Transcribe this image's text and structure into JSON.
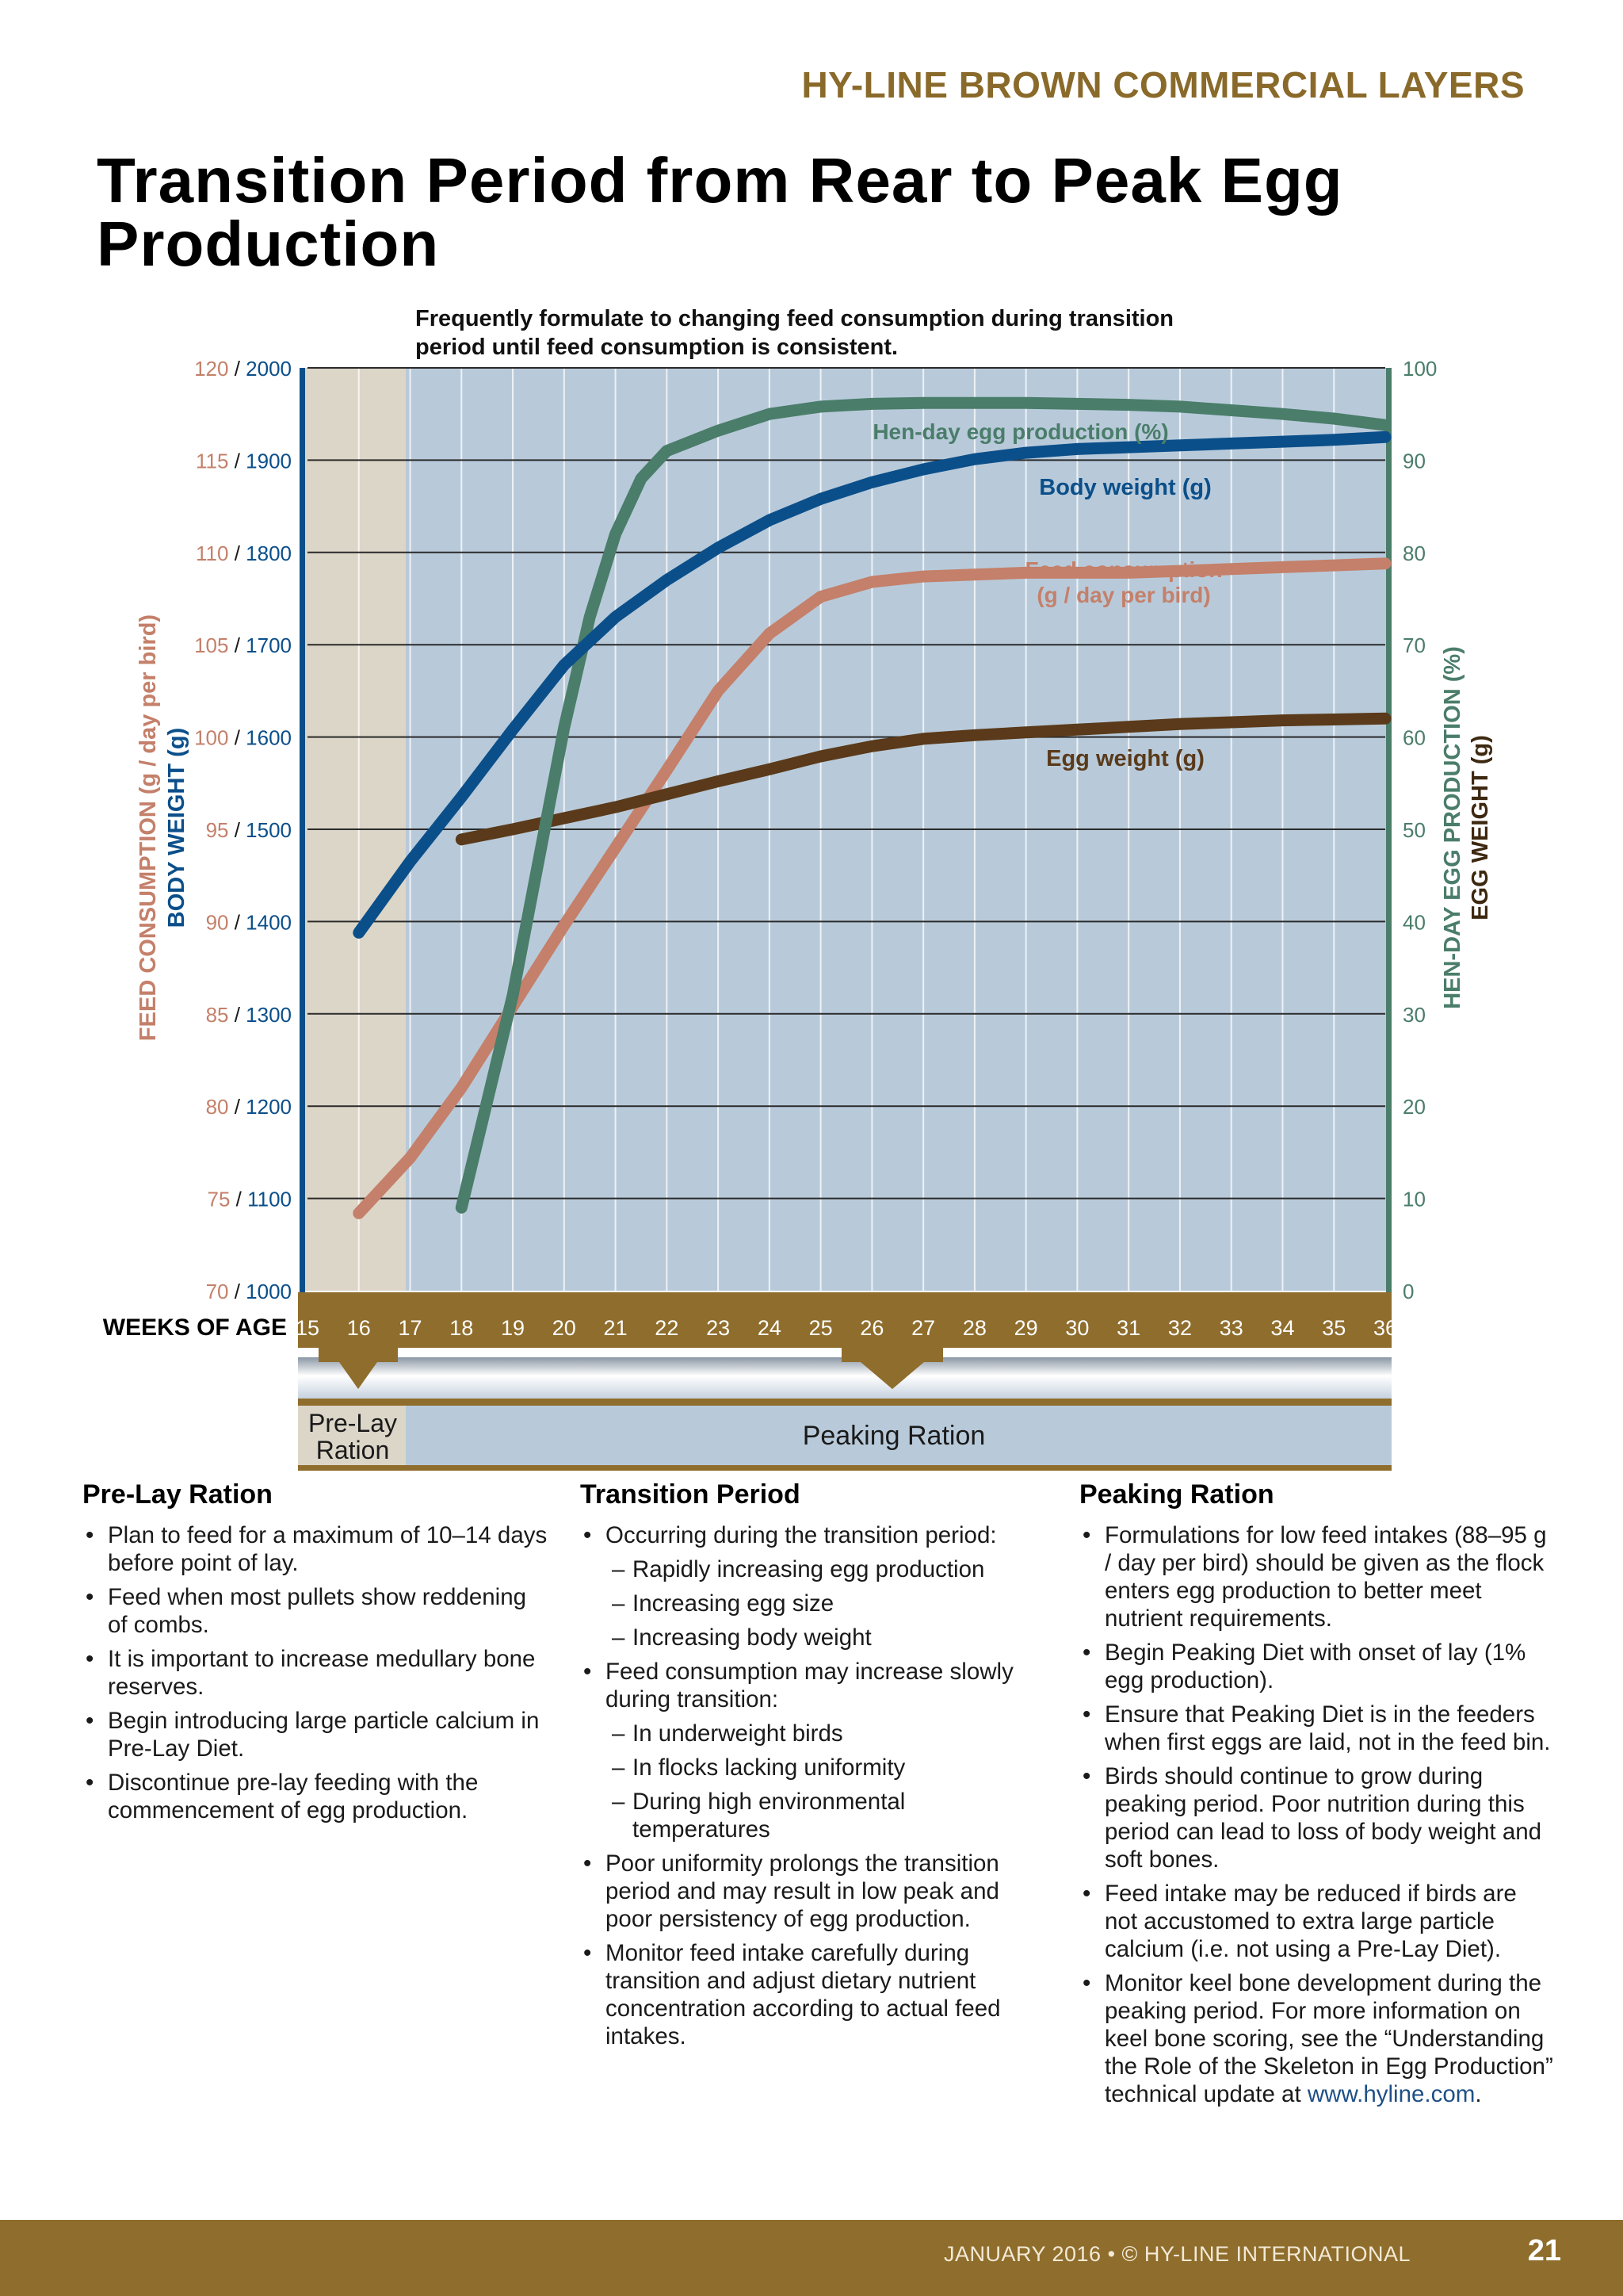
{
  "header": {
    "brand": "HY-LINE BROWN COMMERCIAL LAYERS"
  },
  "title": "Transition Period from Rear to Peak Egg Production",
  "chart_note": "Frequently formulate to changing feed consumption during transition period until feed consumption is consistent.",
  "chart_data": {
    "type": "line",
    "x_axis_label": "WEEKS OF AGE",
    "x_ticks": [
      15,
      16,
      17,
      18,
      19,
      20,
      21,
      22,
      23,
      24,
      25,
      26,
      27,
      28,
      29,
      30,
      31,
      32,
      33,
      34,
      35,
      36
    ],
    "left_axis": {
      "label_feed": "FEED CONSUMPTION (g / day per bird)",
      "label_body": "BODY WEIGHT (g)",
      "feed_ticks": [
        70,
        75,
        80,
        85,
        90,
        95,
        100,
        105,
        110,
        115,
        120
      ],
      "body_ticks": [
        1000,
        1100,
        1200,
        1300,
        1400,
        1500,
        1600,
        1700,
        1800,
        1900,
        2000
      ],
      "feed_range": [
        70,
        120
      ],
      "body_range": [
        1000,
        2000
      ]
    },
    "right_axis": {
      "label_hen": "HEN-DAY EGG PRODUCTION (%)",
      "label_egg": "EGG WEIGHT (g)",
      "ticks": [
        0,
        10,
        20,
        30,
        40,
        50,
        60,
        70,
        80,
        90,
        100
      ],
      "range": [
        0,
        100
      ]
    },
    "series": [
      {
        "name": "Hen-day egg production (%)",
        "axis": "right",
        "color": "#4a7d6a",
        "x": [
          18,
          19,
          20,
          20.5,
          21,
          21.5,
          22,
          23,
          24,
          25,
          26,
          27,
          28,
          29,
          30,
          31,
          32,
          33,
          34,
          35,
          36
        ],
        "values": [
          9,
          32,
          61,
          73,
          82,
          88,
          91,
          93.2,
          95,
          95.8,
          96.1,
          96.2,
          96.2,
          96.2,
          96.1,
          96,
          95.8,
          95.4,
          95,
          94.5,
          93.8
        ]
      },
      {
        "name": "Body weight (g)",
        "axis": "left_body",
        "color": "#0b4f8a",
        "x": [
          16,
          17,
          18,
          19,
          20,
          21,
          22,
          23,
          24,
          25,
          26,
          27,
          28,
          29,
          30,
          31,
          32,
          33,
          34,
          35,
          36
        ],
        "values": [
          1388,
          1465,
          1535,
          1608,
          1678,
          1730,
          1770,
          1805,
          1835,
          1858,
          1876,
          1890,
          1901,
          1908,
          1912,
          1914,
          1916,
          1918,
          1920,
          1922,
          1925
        ]
      },
      {
        "name": "Feed consumption (g / day per bird)",
        "axis": "left_feed",
        "color": "#c4806a",
        "x": [
          16,
          17,
          18,
          19,
          20,
          21,
          22,
          23,
          24,
          25,
          26,
          27,
          28,
          29,
          30,
          31,
          32,
          33,
          34,
          35,
          36
        ],
        "values": [
          74.2,
          77.2,
          81,
          85.4,
          89.8,
          94,
          98.2,
          102.5,
          105.6,
          107.6,
          108.4,
          108.7,
          108.8,
          108.9,
          108.9,
          108.9,
          109,
          109.1,
          109.2,
          109.3,
          109.4
        ]
      },
      {
        "name": "Egg weight (g)",
        "axis": "right",
        "color": "#5a3a1a",
        "x": [
          18,
          19,
          20,
          21,
          22,
          23,
          24,
          25,
          26,
          27,
          28,
          29,
          30,
          31,
          32,
          33,
          34,
          35,
          36
        ],
        "values": [
          48.9,
          50,
          51.2,
          52.4,
          53.8,
          55.2,
          56.5,
          57.9,
          59,
          59.8,
          60.2,
          60.5,
          60.8,
          61.1,
          61.4,
          61.6,
          61.8,
          61.9,
          62
        ]
      }
    ],
    "labels": {
      "hen": "Hen-day egg production (%)",
      "body": "Body weight (g)",
      "feed_l1": "Feed consumption",
      "feed_l2": "(g / day per bird)",
      "egg": "Egg weight (g)"
    },
    "ration_bar": {
      "prelay_l1": "Pre-Lay",
      "prelay_l2": "Ration",
      "peaking": "Peaking Ration"
    },
    "colors": {
      "plot_bg": "#b8cada",
      "prelay_bg": "#dcd6c8",
      "brown": "#8f6d2c",
      "body_blue": "#0b4f8a",
      "feed": "#c4806a",
      "hen": "#4a7d6a",
      "egg": "#5a3a1a"
    }
  },
  "prelay": {
    "heading": "Pre-Lay Ration",
    "items": [
      "Plan to feed for a maximum of 10–14 days before point of lay.",
      "Feed when most pullets show reddening of combs.",
      "It is important to increase medullary bone reserves.",
      "Begin introducing large particle calcium in Pre-Lay Diet.",
      "Discontinue pre-lay feeding with the commencement of egg production."
    ]
  },
  "transition": {
    "heading": "Transition Period",
    "item1": "Occurring during the transition period:",
    "sub1": [
      "Rapidly increasing egg production",
      "Increasing egg size",
      "Increasing body weight"
    ],
    "item2": "Feed consumption may increase slowly during transition:",
    "sub2": [
      "In underweight birds",
      "In flocks lacking uniformity",
      "During high environmental temperatures"
    ],
    "item3": "Poor uniformity prolongs the transition period and may result in low peak and poor persistency of egg production.",
    "item4": "Monitor feed intake carefully during transition and adjust dietary nutrient concentration according to actual feed intakes."
  },
  "peaking": {
    "heading": "Peaking Ration",
    "items": [
      "Formulations for low feed intakes (88–95 g / day per bird) should be given as the flock enters egg production to better meet nutrient requirements.",
      "Begin Peaking Diet with onset of lay (1% egg production).",
      "Ensure that Peaking Diet is in the feeders when first eggs are laid, not in the feed bin.",
      "Birds should continue to grow during peaking period. Poor nutrition during this period can lead to loss of body weight and soft bones.",
      "Feed intake may be reduced if birds are not accustomed to extra large particle calcium (i.e. not using a Pre-Lay Diet)."
    ],
    "last_item": "Monitor keel bone development during the peaking period. For more information on keel bone scoring, see the “Understanding the Role of the Skeleton in Egg Production” technical update at ",
    "link": "www.hyline.com",
    "last_end": "."
  },
  "footer": {
    "text": "JANUARY 2016  •  © HY-LINE INTERNATIONAL",
    "page": "21"
  }
}
